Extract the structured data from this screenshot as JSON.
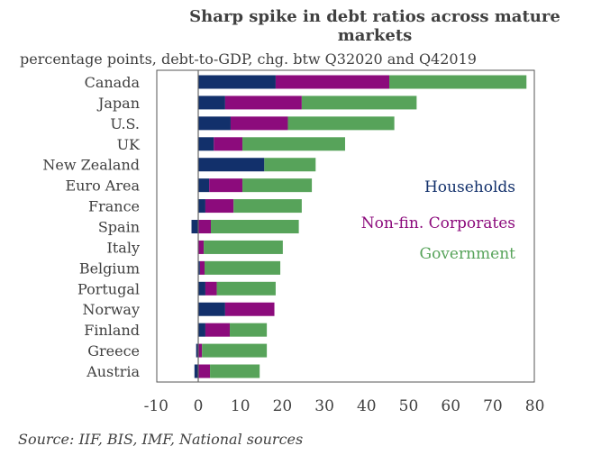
{
  "chart_data": {
    "type": "bar",
    "orientation": "horizontal",
    "stacked": true,
    "title": "Sharp spike in debt ratios across mature markets",
    "subtitle": "percentage points, debt-to-GDP, chg. btw Q32020 and Q42019",
    "source": "Source: IIF, BIS, IMF, National sources",
    "categories": [
      "Canada",
      "Japan",
      "U.S.",
      "UK",
      "New Zealand",
      "Euro Area",
      "France",
      "Spain",
      "Italy",
      "Belgium",
      "Portugal",
      "Norway",
      "Finland",
      "Greece",
      "Austria"
    ],
    "series": [
      {
        "name": "Households",
        "color": "#12306b",
        "values": [
          18.4,
          6.4,
          7.7,
          3.7,
          15.7,
          2.6,
          1.7,
          -1.6,
          0,
          0.4,
          1.7,
          6.4,
          1.7,
          -0.5,
          -0.9
        ]
      },
      {
        "name": "Non-fin. Corporates",
        "color": "#8c0b7c",
        "values": [
          27.0,
          18.2,
          13.6,
          6.8,
          0,
          7.9,
          6.7,
          3.0,
          1.3,
          1.1,
          2.7,
          11.7,
          5.8,
          0.9,
          2.8
        ]
      },
      {
        "name": "Government",
        "color": "#57a35a",
        "values": [
          32.6,
          27.3,
          25.3,
          24.4,
          12.2,
          16.5,
          16.2,
          20.9,
          18.8,
          18.0,
          14.0,
          0,
          8.8,
          15.4,
          11.8
        ]
      }
    ],
    "xlim": [
      -10,
      80
    ],
    "xticks": [
      "-10",
      "0",
      "10",
      "20",
      "30",
      "40",
      "50",
      "60",
      "70",
      "80"
    ],
    "legend_position": "right"
  }
}
